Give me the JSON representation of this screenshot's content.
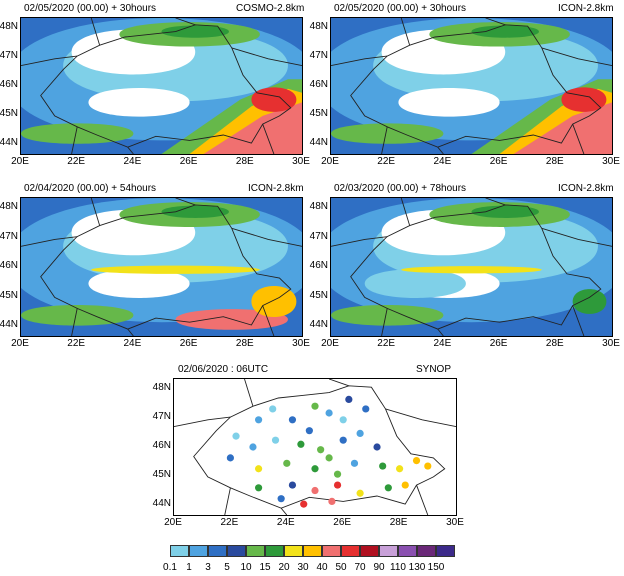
{
  "panels": [
    {
      "id": "p1",
      "title_left": "02/05/2020 (00.00) + 30hours",
      "title_right": "COSMO-2.8km"
    },
    {
      "id": "p2",
      "title_left": "02/05/2020 (00.00) + 30hours",
      "title_right": "ICON-2.8km"
    },
    {
      "id": "p3",
      "title_left": "02/04/2020 (00.00) + 54hours",
      "title_right": "ICON-2.8km"
    },
    {
      "id": "p4",
      "title_left": "02/03/2020 (00.00) + 78hours",
      "title_right": "ICON-2.8km"
    },
    {
      "id": "p5",
      "title_left": "02/06/2020 : 06UTC",
      "title_right": "SYNOP"
    }
  ],
  "axes": {
    "lat_labels": [
      "48N",
      "47N",
      "46N",
      "45N",
      "44N"
    ],
    "lon_labels": [
      "20E",
      "22E",
      "24E",
      "26E",
      "28E",
      "30E"
    ]
  },
  "colorbar": {
    "labels": [
      "0.1",
      "1",
      "3",
      "5",
      "10",
      "15",
      "20",
      "30",
      "40",
      "50",
      "70",
      "90",
      "110",
      "130",
      "150"
    ],
    "colors": [
      "#7fd0e8",
      "#4fa3e0",
      "#2f6fc4",
      "#2a4a9e",
      "#66b84a",
      "#2e9a3a",
      "#f2e21a",
      "#ffc000",
      "#f07070",
      "#e63030",
      "#b01020",
      "#c8a0d8",
      "#8a50b0",
      "#6a2878",
      "#3c2a8a"
    ]
  },
  "colors": {
    "border": "#000000",
    "background": "#ffffff"
  }
}
